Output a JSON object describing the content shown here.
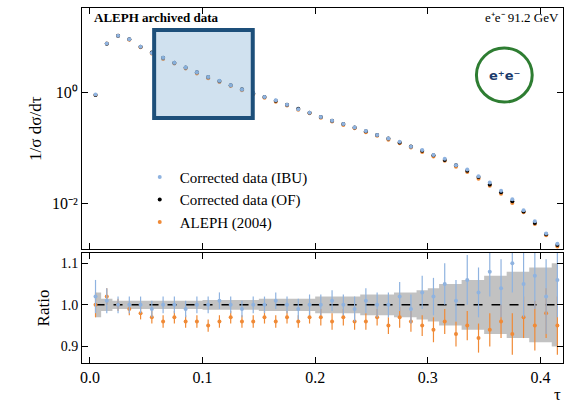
{
  "chart_data": [
    {
      "type": "scatter",
      "title": "ALEPH archived data",
      "annotations": [
        "e⁺e⁻ 91.2 GeV",
        "e⁺e⁻"
      ],
      "y_label": "1/σ dσ/dτ",
      "x": [
        0.005,
        0.015,
        0.025,
        0.035,
        0.045,
        0.055,
        0.065,
        0.075,
        0.085,
        0.095,
        0.105,
        0.115,
        0.125,
        0.135,
        0.145,
        0.155,
        0.165,
        0.175,
        0.185,
        0.195,
        0.205,
        0.215,
        0.225,
        0.235,
        0.245,
        0.255,
        0.265,
        0.275,
        0.285,
        0.295,
        0.305,
        0.315,
        0.325,
        0.335,
        0.345,
        0.355,
        0.365,
        0.375,
        0.385,
        0.395,
        0.405,
        0.415
      ],
      "series": [
        {
          "name": "ALEPH (2004)",
          "color": "#f08a36",
          "marker": "circle",
          "values": [
            0.9,
            7.6,
            10.5,
            8.9,
            6.5,
            5.0,
            4.0,
            3.3,
            2.7,
            2.2,
            1.8,
            1.54,
            1.31,
            1.09,
            0.93,
            0.8,
            0.68,
            0.58,
            0.49,
            0.42,
            0.35,
            0.3,
            0.26,
            0.226,
            0.192,
            0.167,
            0.141,
            0.122,
            0.102,
            0.085,
            0.07,
            0.059,
            0.046,
            0.037,
            0.028,
            0.021,
            0.015,
            0.0102,
            0.007,
            0.0043,
            0.0027,
            0.0017
          ]
        },
        {
          "name": "Corrected data (OF)",
          "color": "#000000",
          "marker": "circle",
          "values": [
            0.9,
            7.5,
            10.5,
            9.0,
            6.6,
            5.2,
            4.2,
            3.4,
            2.8,
            2.3,
            1.9,
            1.6,
            1.35,
            1.14,
            0.97,
            0.83,
            0.71,
            0.6,
            0.51,
            0.43,
            0.36,
            0.31,
            0.27,
            0.235,
            0.2,
            0.172,
            0.148,
            0.126,
            0.106,
            0.089,
            0.074,
            0.061,
            0.049,
            0.039,
            0.03,
            0.022,
            0.016,
            0.011,
            0.0072,
            0.0045,
            0.0028,
            0.0018
          ]
        },
        {
          "name": "Corrected data (IBU)",
          "color": "#8fb3e0",
          "marker": "circle",
          "values": [
            0.92,
            7.6,
            10.5,
            9.0,
            6.6,
            5.1,
            4.2,
            3.4,
            2.8,
            2.3,
            1.9,
            1.62,
            1.35,
            1.13,
            0.97,
            0.83,
            0.72,
            0.6,
            0.5,
            0.43,
            0.36,
            0.31,
            0.27,
            0.233,
            0.202,
            0.172,
            0.148,
            0.129,
            0.105,
            0.092,
            0.075,
            0.064,
            0.049,
            0.041,
            0.031,
            0.024,
            0.017,
            0.012,
            0.0076,
            0.0048,
            0.0029,
            0.0019
          ]
        }
      ],
      "xlim": [
        -0.007,
        0.42
      ],
      "xticks": [
        0,
        0.1,
        0.2,
        0.3,
        0.4
      ],
      "ylim": [
        0.0015,
        33
      ],
      "yticks": [
        {
          "value": 1,
          "label": "10⁰"
        },
        {
          "value": 0.01,
          "label": "10⁻²"
        }
      ],
      "log": "y",
      "legend": "lower left",
      "tick_labels": "y",
      "grid": false
    },
    {
      "type": "scatter",
      "y_label": "Ratio",
      "x_label": "τ",
      "x": [
        0.005,
        0.015,
        0.025,
        0.035,
        0.045,
        0.055,
        0.065,
        0.075,
        0.085,
        0.095,
        0.105,
        0.115,
        0.125,
        0.135,
        0.145,
        0.155,
        0.165,
        0.175,
        0.185,
        0.195,
        0.205,
        0.215,
        0.225,
        0.235,
        0.245,
        0.255,
        0.265,
        0.275,
        0.285,
        0.295,
        0.305,
        0.315,
        0.325,
        0.335,
        0.345,
        0.355,
        0.365,
        0.375,
        0.385,
        0.395,
        0.405,
        0.415
      ],
      "series": [
        {
          "name": "Corrected data (OF)",
          "color": "#000000",
          "line_style": "dashed",
          "values": [
            1,
            1,
            1,
            1,
            1,
            1,
            1,
            1,
            1,
            1,
            1,
            1,
            1,
            1,
            1,
            1,
            1,
            1,
            1,
            1,
            1,
            1,
            1,
            1,
            1,
            1,
            1,
            1,
            1,
            1,
            1,
            1,
            1,
            1,
            1,
            1,
            1,
            1,
            1,
            1,
            1,
            1
          ],
          "errors": [
            0.03,
            0.015,
            0.01,
            0.01,
            0.01,
            0.01,
            0.01,
            0.01,
            0.01,
            0.01,
            0.012,
            0.012,
            0.012,
            0.012,
            0.012,
            0.015,
            0.015,
            0.015,
            0.015,
            0.015,
            0.02,
            0.02,
            0.02,
            0.02,
            0.025,
            0.025,
            0.025,
            0.03,
            0.03,
            0.035,
            0.04,
            0.05,
            0.05,
            0.06,
            0.06,
            0.07,
            0.07,
            0.08,
            0.08,
            0.09,
            0.09,
            0.1
          ]
        },
        {
          "name": "ALEPH (2004)",
          "color": "#f08a36",
          "marker": "circle",
          "values": [
            1.0,
            1.02,
            1.0,
            0.99,
            0.98,
            0.97,
            0.96,
            0.97,
            0.96,
            0.96,
            0.95,
            0.96,
            0.97,
            0.96,
            0.96,
            0.97,
            0.96,
            0.97,
            0.96,
            0.97,
            0.97,
            0.96,
            0.97,
            0.96,
            0.96,
            0.97,
            0.95,
            0.97,
            0.96,
            0.95,
            0.94,
            0.96,
            0.93,
            0.95,
            0.92,
            0.94,
            0.96,
            0.93,
            0.97,
            0.95,
            0.98,
            0.95
          ],
          "errors": [
            0.03,
            0.02,
            0.015,
            0.015,
            0.015,
            0.015,
            0.015,
            0.015,
            0.015,
            0.015,
            0.015,
            0.015,
            0.015,
            0.015,
            0.015,
            0.015,
            0.015,
            0.015,
            0.015,
            0.015,
            0.02,
            0.02,
            0.02,
            0.02,
            0.02,
            0.02,
            0.02,
            0.025,
            0.025,
            0.025,
            0.03,
            0.03,
            0.03,
            0.035,
            0.035,
            0.04,
            0.04,
            0.05,
            0.05,
            0.06,
            0.06,
            0.07
          ]
        },
        {
          "name": "Corrected data (IBU)",
          "color": "#8fb3e0",
          "marker": "circle",
          "values": [
            1.02,
            1.01,
            1.0,
            1.0,
            1.0,
            0.99,
            1.0,
            1.0,
            0.99,
            1.0,
            1.0,
            1.01,
            1.0,
            0.99,
            1.0,
            1.0,
            1.01,
            1.0,
            0.99,
            1.0,
            1.0,
            1.01,
            1.0,
            0.99,
            1.01,
            1.0,
            1.0,
            1.02,
            0.99,
            1.03,
            1.02,
            1.05,
            1.01,
            1.06,
            1.03,
            1.08,
            1.04,
            1.1,
            1.05,
            1.07,
            1.02,
            1.06
          ],
          "errors": [
            0.04,
            0.03,
            0.02,
            0.02,
            0.02,
            0.02,
            0.02,
            0.02,
            0.02,
            0.02,
            0.02,
            0.02,
            0.02,
            0.02,
            0.02,
            0.02,
            0.02,
            0.02,
            0.025,
            0.025,
            0.025,
            0.025,
            0.025,
            0.03,
            0.03,
            0.03,
            0.03,
            0.035,
            0.035,
            0.04,
            0.045,
            0.05,
            0.05,
            0.06,
            0.06,
            0.06,
            0.07,
            0.07,
            0.08,
            0.08,
            0.09,
            0.09
          ]
        }
      ],
      "xlim": [
        -0.007,
        0.42
      ],
      "xticks": [
        {
          "value": 0,
          "label": "0.0"
        },
        0.1,
        0.2,
        0.3,
        0.4
      ],
      "ylim": [
        0.86,
        1.125
      ],
      "yticks": [
        0.9,
        {
          "value": 1,
          "label": "1.0"
        },
        1.1
      ],
      "grid": false
    }
  ]
}
